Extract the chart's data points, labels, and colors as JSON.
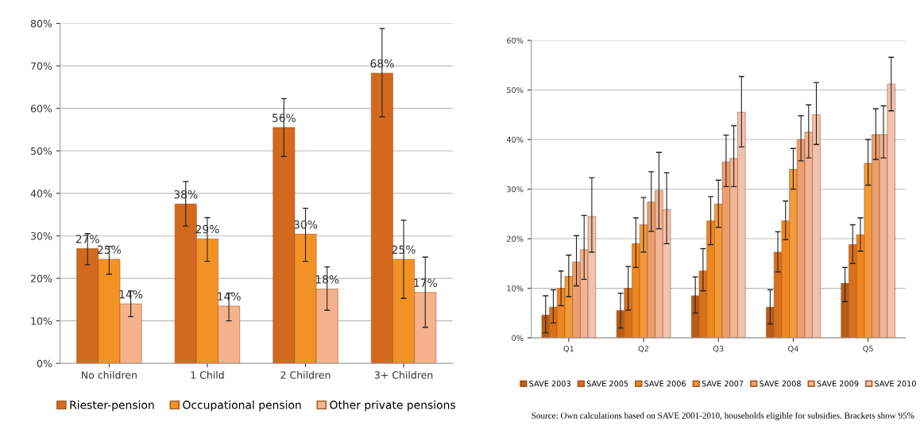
{
  "chart_data": [
    {
      "type": "bar",
      "categories": [
        "No children",
        "1 Child",
        "2 Children",
        "3+ Children"
      ],
      "series": [
        {
          "name": "Riester-pension",
          "color": "#d2691e",
          "values": [
            27,
            37.5,
            55.5,
            68.3
          ],
          "value_labels": [
            "27%",
            "38%",
            "56%",
            "68%"
          ],
          "errors": [
            [
              23.2,
              30.5
            ],
            [
              32.3,
              42.8
            ],
            [
              48.7,
              62.3
            ],
            [
              58,
              78.8
            ]
          ]
        },
        {
          "name": "Occupational pension",
          "color": "#f39224",
          "values": [
            24.5,
            29.3,
            30.4,
            24.5
          ],
          "value_labels": [
            "25%",
            "29%",
            "30%",
            "25%"
          ],
          "errors": [
            [
              21,
              27.5
            ],
            [
              24,
              34.3
            ],
            [
              24,
              36.5
            ],
            [
              15.3,
              33.7
            ]
          ]
        },
        {
          "name": "Other private pensions",
          "color": "#f5b28c",
          "values": [
            14,
            13.5,
            17.5,
            16.7
          ],
          "value_labels": [
            "14%",
            "14%",
            "18%",
            "17%"
          ],
          "errors": [
            [
              11,
              17
            ],
            [
              10,
              16.5
            ],
            [
              12.5,
              22.7
            ],
            [
              8.5,
              25
            ]
          ]
        }
      ],
      "ylim": [
        0,
        80
      ],
      "yticks": [
        {
          "value": 0,
          "label": "0%"
        },
        {
          "value": 10,
          "label": "10%"
        },
        {
          "value": 20,
          "label": "20%"
        },
        {
          "value": 30,
          "label": "30%"
        },
        {
          "value": 40,
          "label": "40%"
        },
        {
          "value": 50,
          "label": "50%"
        },
        {
          "value": 60,
          "label": "60%"
        },
        {
          "value": 70,
          "label": "70%"
        },
        {
          "value": 80,
          "label": "80%"
        }
      ],
      "grid": "y",
      "legend": "bottom"
    },
    {
      "type": "bar",
      "categories": [
        "Q1",
        "Q2",
        "Q3",
        "Q4",
        "Q5"
      ],
      "series": [
        {
          "name": "SAVE 2003",
          "color": "#b85c18",
          "values": [
            4.6,
            5.5,
            8.5,
            6.2,
            11
          ],
          "errors": [
            [
              1,
              8.5
            ],
            [
              2,
              9
            ],
            [
              5,
              12.3
            ],
            [
              2.8,
              9.7
            ],
            [
              7.3,
              14.2
            ]
          ]
        },
        {
          "name": "SAVE 2005",
          "color": "#d9701c",
          "values": [
            6.2,
            10,
            13.5,
            17.3,
            18.8
          ],
          "errors": [
            [
              3,
              9.7
            ],
            [
              5.6,
              14.4
            ],
            [
              9.5,
              18
            ],
            [
              13.3,
              21.4
            ],
            [
              15,
              22.8
            ]
          ]
        },
        {
          "name": "SAVE 2006",
          "color": "#f0861e",
          "values": [
            10,
            19,
            23.6,
            23.6,
            20.8
          ],
          "errors": [
            [
              6.5,
              13.5
            ],
            [
              14.2,
              24.2
            ],
            [
              18.8,
              28.5
            ],
            [
              19.8,
              27.6
            ],
            [
              17.5,
              24.2
            ]
          ]
        },
        {
          "name": "SAVE 2007",
          "color": "#f39a3a",
          "values": [
            12.4,
            22.8,
            27,
            34,
            35.2
          ],
          "errors": [
            [
              8.3,
              16.7
            ],
            [
              17.3,
              28.3
            ],
            [
              22.3,
              31.8
            ],
            [
              30,
              38.2
            ],
            [
              30.8,
              40
            ]
          ]
        },
        {
          "name": "SAVE 2008",
          "color": "#eb9e70",
          "values": [
            15.3,
            27.4,
            35.5,
            40,
            41
          ],
          "errors": [
            [
              10.5,
              20.6
            ],
            [
              21.5,
              33.5
            ],
            [
              30.5,
              40.9
            ],
            [
              35.7,
              44.8
            ],
            [
              36,
              46.2
            ]
          ]
        },
        {
          "name": "SAVE 2009",
          "color": "#f0b596",
          "values": [
            17.8,
            29.7,
            36.2,
            41.5,
            41
          ],
          "errors": [
            [
              11.8,
              24.7
            ],
            [
              22,
              37.4
            ],
            [
              30.5,
              42.8
            ],
            [
              36.3,
              47
            ],
            [
              36.3,
              46.8
            ]
          ]
        },
        {
          "name": "SAVE 2010",
          "color": "#f2c2b0",
          "values": [
            24.5,
            25.9,
            45.5,
            45,
            51.2
          ],
          "errors": [
            [
              17.3,
              32.3
            ],
            [
              19,
              33.3
            ],
            [
              38.5,
              52.7
            ],
            [
              39,
              51.5
            ],
            [
              45.8,
              56.6
            ]
          ]
        }
      ],
      "ylim": [
        0,
        60
      ],
      "yticks": [
        {
          "value": 0,
          "label": "0%"
        },
        {
          "value": 10,
          "label": "10%"
        },
        {
          "value": 20,
          "label": "20%"
        },
        {
          "value": 30,
          "label": "30%"
        },
        {
          "value": 40,
          "label": "40%"
        },
        {
          "value": 50,
          "label": "50%"
        },
        {
          "value": 60,
          "label": "60%"
        }
      ],
      "grid": "y",
      "legend": "bottom",
      "annotations": [
        "Source: Own calculations based on SAVE 2001-2010, households eligible for subsidies. Brackets show 95%"
      ]
    }
  ]
}
